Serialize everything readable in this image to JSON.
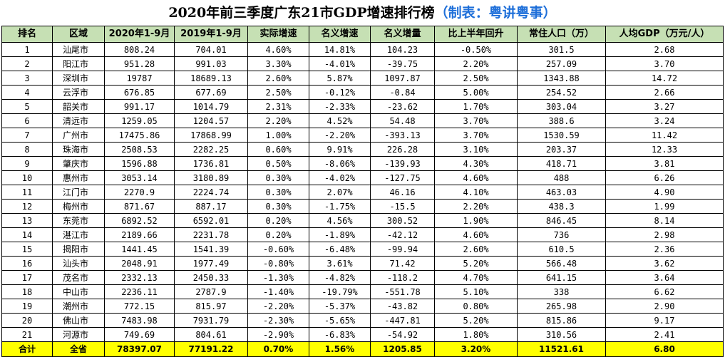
{
  "title": {
    "main": "2020年前三季度广东21市GDP增速排行榜",
    "source": "（制表：粤讲粤事）"
  },
  "headers": [
    "排名",
    "区域",
    "2020年1-9月",
    "2019年1-9月",
    "实际增速",
    "名义增速",
    "名义增量",
    "比上半年回升",
    "常住人口（万）",
    "人均GDP（万元/人）"
  ],
  "rows": [
    [
      "1",
      "汕尾市",
      "808.24",
      "704.01",
      "4.60%",
      "14.81%",
      "104.23",
      "-0.50%",
      "301.5",
      "2.68"
    ],
    [
      "2",
      "阳江市",
      "951.28",
      "991.03",
      "3.30%",
      "-4.01%",
      "-39.75",
      "2.20%",
      "257.09",
      "3.70"
    ],
    [
      "3",
      "深圳市",
      "19787",
      "18689.13",
      "2.60%",
      "5.87%",
      "1097.87",
      "2.50%",
      "1343.88",
      "14.72"
    ],
    [
      "4",
      "云浮市",
      "676.85",
      "677.69",
      "2.50%",
      "-0.12%",
      "-0.84",
      "5.00%",
      "254.52",
      "2.66"
    ],
    [
      "5",
      "韶关市",
      "991.17",
      "1014.79",
      "2.31%",
      "-2.33%",
      "-23.62",
      "1.70%",
      "303.04",
      "3.27"
    ],
    [
      "6",
      "清远市",
      "1259.05",
      "1204.57",
      "2.20%",
      "4.52%",
      "54.48",
      "3.70%",
      "388.6",
      "3.24"
    ],
    [
      "7",
      "广州市",
      "17475.86",
      "17868.99",
      "1.00%",
      "-2.20%",
      "-393.13",
      "3.70%",
      "1530.59",
      "11.42"
    ],
    [
      "8",
      "珠海市",
      "2508.53",
      "2282.25",
      "0.60%",
      "9.91%",
      "226.28",
      "3.10%",
      "203.37",
      "12.33"
    ],
    [
      "9",
      "肇庆市",
      "1596.88",
      "1736.81",
      "0.50%",
      "-8.06%",
      "-139.93",
      "4.30%",
      "418.71",
      "3.81"
    ],
    [
      "10",
      "惠州市",
      "3053.14",
      "3180.89",
      "0.30%",
      "-4.02%",
      "-127.75",
      "4.60%",
      "488",
      "6.26"
    ],
    [
      "11",
      "江门市",
      "2270.9",
      "2224.74",
      "0.30%",
      "2.07%",
      "46.16",
      "4.10%",
      "463.03",
      "4.90"
    ],
    [
      "12",
      "梅州市",
      "871.67",
      "887.17",
      "0.30%",
      "-1.75%",
      "-15.5",
      "2.20%",
      "438.3",
      "1.99"
    ],
    [
      "13",
      "东莞市",
      "6892.52",
      "6592.01",
      "0.20%",
      "4.56%",
      "300.52",
      "1.90%",
      "846.45",
      "8.14"
    ],
    [
      "14",
      "湛江市",
      "2189.66",
      "2231.78",
      "0.20%",
      "-1.89%",
      "-42.12",
      "4.60%",
      "736",
      "2.98"
    ],
    [
      "15",
      "揭阳市",
      "1441.45",
      "1541.39",
      "-0.60%",
      "-6.48%",
      "-99.94",
      "2.60%",
      "610.5",
      "2.36"
    ],
    [
      "16",
      "汕头市",
      "2048.91",
      "1977.49",
      "-0.80%",
      "3.61%",
      "71.42",
      "5.20%",
      "566.48",
      "3.62"
    ],
    [
      "17",
      "茂名市",
      "2332.13",
      "2450.33",
      "-1.30%",
      "-4.82%",
      "-118.2",
      "4.70%",
      "641.15",
      "3.64"
    ],
    [
      "18",
      "中山市",
      "2236.11",
      "2787.9",
      "-1.40%",
      "-19.79%",
      "-551.78",
      "5.10%",
      "338",
      "6.62"
    ],
    [
      "19",
      "潮州市",
      "772.15",
      "815.97",
      "-2.20%",
      "-5.37%",
      "-43.82",
      "0.80%",
      "265.98",
      "2.90"
    ],
    [
      "20",
      "佛山市",
      "7483.98",
      "7931.79",
      "-2.30%",
      "-5.65%",
      "-447.81",
      "5.20%",
      "815.86",
      "9.17"
    ],
    [
      "21",
      "河源市",
      "749.69",
      "804.61",
      "-2.90%",
      "-6.83%",
      "-54.92",
      "1.80%",
      "310.56",
      "2.41"
    ]
  ],
  "total": [
    "合计",
    "全省",
    "78397.07",
    "77191.22",
    "0.70%",
    "1.56%",
    "1205.85",
    "3.20%",
    "11521.61",
    "6.80"
  ]
}
